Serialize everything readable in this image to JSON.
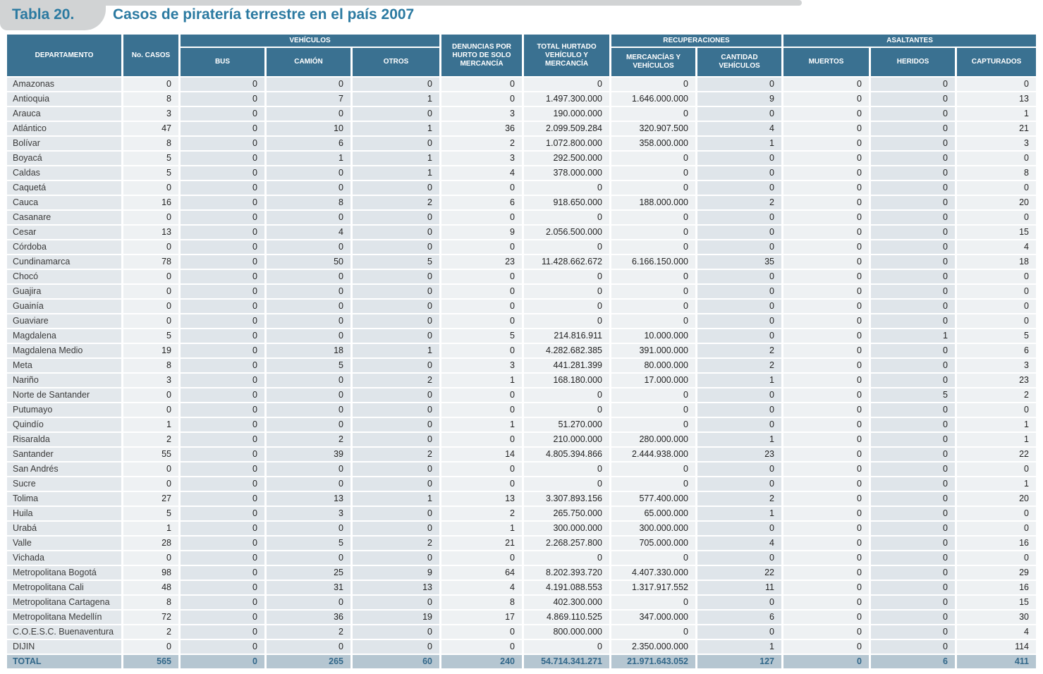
{
  "title": {
    "label": "Tabla 20.",
    "text": "Casos de piratería terrestre en el país 2007"
  },
  "colors": {
    "header_blue": "#3a7191",
    "title_blue": "#2b7aa1",
    "banner_gray": "#d1d3d4",
    "row_light": "#eef1f3",
    "row_dark": "#dfe5ea",
    "total_row_bg": "#b5c6d1",
    "total_row_text": "#33688a"
  },
  "table": {
    "headers": {
      "departamento": "DEPARTAMENTO",
      "casos": "No. CASOS",
      "vehiculos": "VEHÍCULOS",
      "bus": "BUS",
      "camion": "CAMIÓN",
      "otros": "OTROS",
      "denuncias": "DENUNCIAS POR HURTO DE SOLO MERCANCÍA",
      "total_hurtado": "TOTAL HURTADO VEHÍCULO Y MERCANCÍA",
      "recuperaciones": "RECUPERACIONES",
      "mercancias": "MERCANCÍAS Y VEHÍCULOS",
      "cantidad": "CANTIDAD VEHÍCULOS",
      "asaltantes": "ASALTANTES",
      "muertos": "MUERTOS",
      "heridos": "HERIDOS",
      "capturados": "CAPTURADOS"
    },
    "rows": [
      [
        "Amazonas",
        "0",
        "0",
        "0",
        "0",
        "0",
        "0",
        "0",
        "0",
        "0",
        "0",
        "0"
      ],
      [
        "Antioquia",
        "8",
        "0",
        "7",
        "1",
        "0",
        "1.497.300.000",
        "1.646.000.000",
        "9",
        "0",
        "0",
        "13"
      ],
      [
        "Arauca",
        "3",
        "0",
        "0",
        "0",
        "3",
        "190.000.000",
        "0",
        "0",
        "0",
        "0",
        "1"
      ],
      [
        "Atlántico",
        "47",
        "0",
        "10",
        "1",
        "36",
        "2.099.509.284",
        "320.907.500",
        "4",
        "0",
        "0",
        "21"
      ],
      [
        "Bolívar",
        "8",
        "0",
        "6",
        "0",
        "2",
        "1.072.800.000",
        "358.000.000",
        "1",
        "0",
        "0",
        "3"
      ],
      [
        "Boyacá",
        "5",
        "0",
        "1",
        "1",
        "3",
        "292.500.000",
        "0",
        "0",
        "0",
        "0",
        "0"
      ],
      [
        "Caldas",
        "5",
        "0",
        "0",
        "1",
        "4",
        "378.000.000",
        "0",
        "0",
        "0",
        "0",
        "8"
      ],
      [
        "Caquetá",
        "0",
        "0",
        "0",
        "0",
        "0",
        "0",
        "0",
        "0",
        "0",
        "0",
        "0"
      ],
      [
        "Cauca",
        "16",
        "0",
        "8",
        "2",
        "6",
        "918.650.000",
        "188.000.000",
        "2",
        "0",
        "0",
        "20"
      ],
      [
        "Casanare",
        "0",
        "0",
        "0",
        "0",
        "0",
        "0",
        "0",
        "0",
        "0",
        "0",
        "0"
      ],
      [
        "Cesar",
        "13",
        "0",
        "4",
        "0",
        "9",
        "2.056.500.000",
        "0",
        "0",
        "0",
        "0",
        "15"
      ],
      [
        "Córdoba",
        "0",
        "0",
        "0",
        "0",
        "0",
        "0",
        "0",
        "0",
        "0",
        "0",
        "4"
      ],
      [
        "Cundinamarca",
        "78",
        "0",
        "50",
        "5",
        "23",
        "11.428.662.672",
        "6.166.150.000",
        "35",
        "0",
        "0",
        "18"
      ],
      [
        "Chocó",
        "0",
        "0",
        "0",
        "0",
        "0",
        "0",
        "0",
        "0",
        "0",
        "0",
        "0"
      ],
      [
        "Guajira",
        "0",
        "0",
        "0",
        "0",
        "0",
        "0",
        "0",
        "0",
        "0",
        "0",
        "0"
      ],
      [
        "Guainía",
        "0",
        "0",
        "0",
        "0",
        "0",
        "0",
        "0",
        "0",
        "0",
        "0",
        "0"
      ],
      [
        "Guaviare",
        "0",
        "0",
        "0",
        "0",
        "0",
        "0",
        "0",
        "0",
        "0",
        "0",
        "0"
      ],
      [
        "Magdalena",
        "5",
        "0",
        "0",
        "0",
        "5",
        "214.816.911",
        "10.000.000",
        "0",
        "0",
        "1",
        "5"
      ],
      [
        "Magdalena Medio",
        "19",
        "0",
        "18",
        "1",
        "0",
        "4.282.682.385",
        "391.000.000",
        "2",
        "0",
        "0",
        "6"
      ],
      [
        "Meta",
        "8",
        "0",
        "5",
        "0",
        "3",
        "441.281.399",
        "80.000.000",
        "2",
        "0",
        "0",
        "3"
      ],
      [
        "Nariño",
        "3",
        "0",
        "0",
        "2",
        "1",
        "168.180.000",
        "17.000.000",
        "1",
        "0",
        "0",
        "23"
      ],
      [
        "Norte de Santander",
        "0",
        "0",
        "0",
        "0",
        "0",
        "0",
        "0",
        "0",
        "0",
        "5",
        "2"
      ],
      [
        "Putumayo",
        "0",
        "0",
        "0",
        "0",
        "0",
        "0",
        "0",
        "0",
        "0",
        "0",
        "0"
      ],
      [
        "Quindío",
        "1",
        "0",
        "0",
        "0",
        "1",
        "51.270.000",
        "0",
        "0",
        "0",
        "0",
        "1"
      ],
      [
        "Risaralda",
        "2",
        "0",
        "2",
        "0",
        "0",
        "210.000.000",
        "280.000.000",
        "1",
        "0",
        "0",
        "1"
      ],
      [
        "Santander",
        "55",
        "0",
        "39",
        "2",
        "14",
        "4.805.394.866",
        "2.444.938.000",
        "23",
        "0",
        "0",
        "22"
      ],
      [
        "San Andrés",
        "0",
        "0",
        "0",
        "0",
        "0",
        "0",
        "0",
        "0",
        "0",
        "0",
        "0"
      ],
      [
        "Sucre",
        "0",
        "0",
        "0",
        "0",
        "0",
        "0",
        "0",
        "0",
        "0",
        "0",
        "1"
      ],
      [
        "Tolima",
        "27",
        "0",
        "13",
        "1",
        "13",
        "3.307.893.156",
        "577.400.000",
        "2",
        "0",
        "0",
        "20"
      ],
      [
        "Huila",
        "5",
        "0",
        "3",
        "0",
        "2",
        "265.750.000",
        "65.000.000",
        "1",
        "0",
        "0",
        "0"
      ],
      [
        "Urabá",
        "1",
        "0",
        "0",
        "0",
        "1",
        "300.000.000",
        "300.000.000",
        "0",
        "0",
        "0",
        "0"
      ],
      [
        "Valle",
        "28",
        "0",
        "5",
        "2",
        "21",
        "2.268.257.800",
        "705.000.000",
        "4",
        "0",
        "0",
        "16"
      ],
      [
        "Vichada",
        "0",
        "0",
        "0",
        "0",
        "0",
        "0",
        "0",
        "0",
        "0",
        "0",
        "0"
      ],
      [
        "Metropolitana Bogotá",
        "98",
        "0",
        "25",
        "9",
        "64",
        "8.202.393.720",
        "4.407.330.000",
        "22",
        "0",
        "0",
        "29"
      ],
      [
        "Metropolitana Cali",
        "48",
        "0",
        "31",
        "13",
        "4",
        "4.191.088.553",
        "1.317.917.552",
        "11",
        "0",
        "0",
        "16"
      ],
      [
        "Metropolitana Cartagena",
        "8",
        "0",
        "0",
        "0",
        "8",
        "402.300.000",
        "0",
        "0",
        "0",
        "0",
        "15"
      ],
      [
        "Metropolitana Medellín",
        "72",
        "0",
        "36",
        "19",
        "17",
        "4.869.110.525",
        "347.000.000",
        "6",
        "0",
        "0",
        "30"
      ],
      [
        "C.O.E.S.C. Buenaventura",
        "2",
        "0",
        "2",
        "0",
        "0",
        "800.000.000",
        "0",
        "0",
        "0",
        "0",
        "4"
      ],
      [
        "DIJIN",
        "0",
        "0",
        "0",
        "0",
        "0",
        "0",
        "2.350.000.000",
        "1",
        "0",
        "0",
        "114"
      ]
    ],
    "total": [
      "TOTAL",
      "565",
      "0",
      "265",
      "60",
      "240",
      "54.714.341.271",
      "21.971.643.052",
      "127",
      "0",
      "6",
      "411"
    ]
  }
}
